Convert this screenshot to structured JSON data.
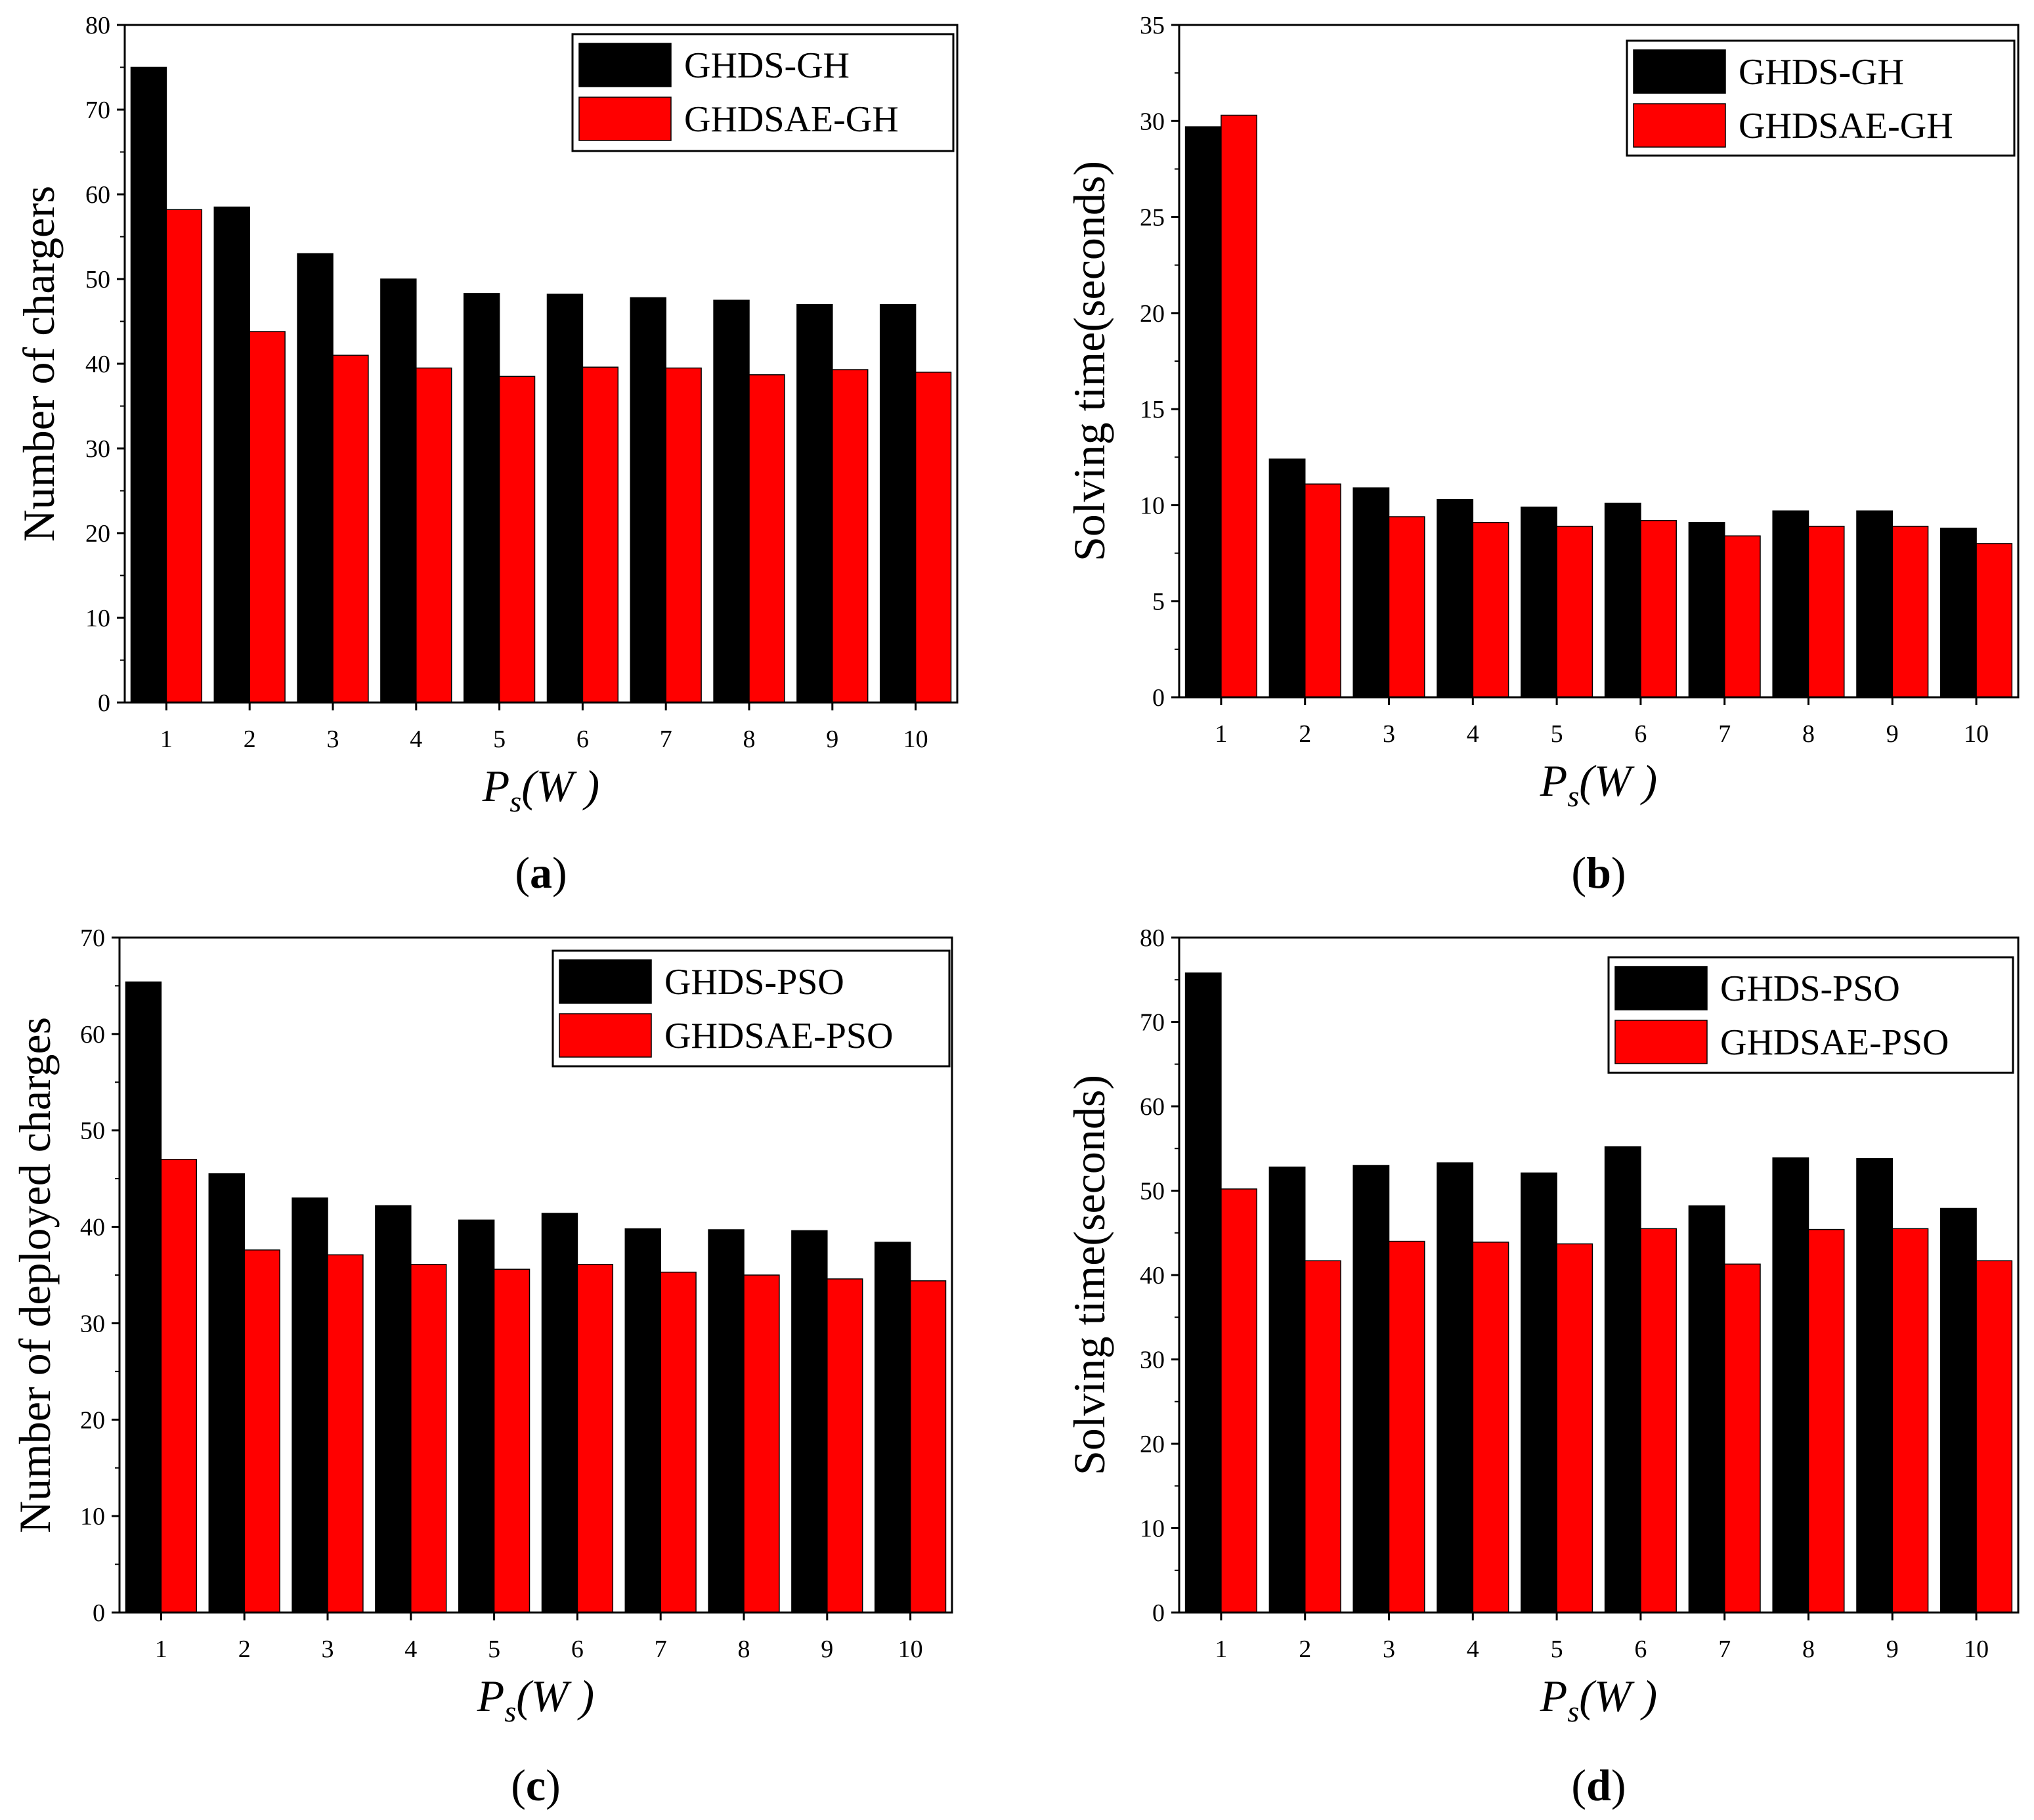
{
  "colors": {
    "series1": "#000000",
    "series2": "#ff0000",
    "axis": "#000000"
  },
  "chart_data": [
    {
      "id": "a",
      "type": "bar",
      "caption_letter": "a",
      "ylabel": "Number of chargers",
      "xlabel_main": "P",
      "xlabel_sub": "s",
      "xlabel_unit": "(W )",
      "ylim": [
        0,
        80
      ],
      "yticks": [
        0,
        10,
        20,
        30,
        40,
        50,
        60,
        70,
        80
      ],
      "categories": [
        "1",
        "2",
        "3",
        "4",
        "5",
        "6",
        "7",
        "8",
        "9",
        "10"
      ],
      "legend_position": "top-right",
      "series": [
        {
          "name": "GHDS-GH",
          "values": [
            75,
            58.5,
            53,
            50,
            48.3,
            48.2,
            47.8,
            47.5,
            47,
            47
          ]
        },
        {
          "name": "GHDSAE-GH",
          "values": [
            58.2,
            43.8,
            41,
            39.5,
            38.5,
            39.6,
            39.5,
            38.7,
            39.3,
            39
          ]
        }
      ]
    },
    {
      "id": "b",
      "type": "bar",
      "caption_letter": "b",
      "ylabel": "Solving time(seconds)",
      "xlabel_main": "P",
      "xlabel_sub": "s",
      "xlabel_unit": "(W )",
      "ylim": [
        0,
        35
      ],
      "yticks": [
        0,
        5,
        10,
        15,
        20,
        25,
        30,
        35
      ],
      "categories": [
        "1",
        "2",
        "3",
        "4",
        "5",
        "6",
        "7",
        "8",
        "9",
        "10"
      ],
      "legend_position": "top-right",
      "series": [
        {
          "name": "GHDS-GH",
          "values": [
            29.7,
            12.4,
            10.9,
            10.3,
            9.9,
            10.1,
            9.1,
            9.7,
            9.7,
            8.8
          ]
        },
        {
          "name": "GHDSAE-GH",
          "values": [
            30.3,
            11.1,
            9.4,
            9.1,
            8.9,
            9.2,
            8.4,
            8.9,
            8.9,
            8.0
          ]
        }
      ]
    },
    {
      "id": "c",
      "type": "bar",
      "caption_letter": "c",
      "ylabel": "Number of deployed charges",
      "xlabel_main": "P",
      "xlabel_sub": "s",
      "xlabel_unit": "(W )",
      "ylim": [
        0,
        70
      ],
      "yticks": [
        0,
        10,
        20,
        30,
        40,
        50,
        60,
        70
      ],
      "categories": [
        "1",
        "2",
        "3",
        "4",
        "5",
        "6",
        "7",
        "8",
        "9",
        "10"
      ],
      "legend_position": "top-right",
      "series": [
        {
          "name": "GHDS-PSO",
          "values": [
            65.4,
            45.5,
            43,
            42.2,
            40.7,
            41.4,
            39.8,
            39.7,
            39.6,
            38.4
          ]
        },
        {
          "name": "GHDSAE-PSO",
          "values": [
            47,
            37.6,
            37.1,
            36.1,
            35.6,
            36.1,
            35.3,
            35,
            34.6,
            34.4
          ]
        }
      ]
    },
    {
      "id": "d",
      "type": "bar",
      "caption_letter": "d",
      "ylabel": "Solving time(seconds)",
      "xlabel_main": "P",
      "xlabel_sub": "s",
      "xlabel_unit": "(W )",
      "ylim": [
        0,
        80
      ],
      "yticks": [
        0,
        10,
        20,
        30,
        40,
        50,
        60,
        70,
        80
      ],
      "categories": [
        "1",
        "2",
        "3",
        "4",
        "5",
        "6",
        "7",
        "8",
        "9",
        "10"
      ],
      "legend_position": "top-right",
      "series": [
        {
          "name": "GHDS-PSO",
          "values": [
            75.8,
            52.8,
            53,
            53.3,
            52.1,
            55.2,
            48.2,
            53.9,
            53.8,
            47.9
          ]
        },
        {
          "name": "GHDSAE-PSO",
          "values": [
            50.2,
            41.7,
            44,
            43.9,
            43.7,
            45.5,
            41.3,
            45.4,
            45.5,
            41.7
          ]
        }
      ]
    }
  ]
}
